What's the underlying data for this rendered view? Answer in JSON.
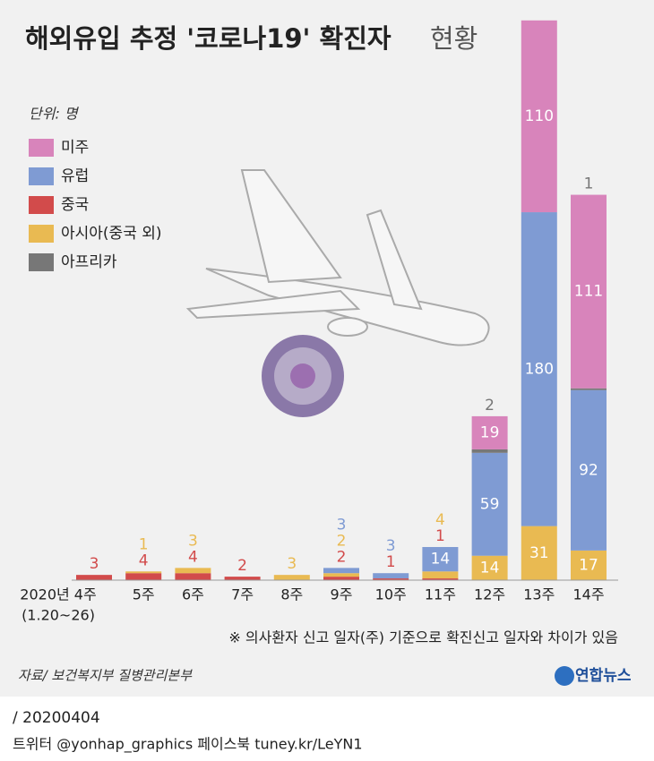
{
  "chart_data": {
    "type": "stacked-bar",
    "title": "해외유입 추정 '코로나19' 확진자",
    "title_suffix": "현황",
    "unit": "단위: 명",
    "categories": [
      "2020년 4주",
      "5주",
      "6주",
      "7주",
      "8주",
      "9주",
      "10주",
      "11주",
      "12주",
      "13주",
      "14주"
    ],
    "first_category_note": "(1.20~26)",
    "ylim": [
      0,
      325
    ],
    "series": [
      {
        "name": "중국",
        "color": "#d24b4b",
        "values": [
          3,
          4,
          4,
          2,
          null,
          2,
          1,
          1,
          null,
          null,
          null
        ]
      },
      {
        "name": "아시아(중국 외)",
        "color": "#e9ba52",
        "values": [
          null,
          1,
          3,
          null,
          3,
          2,
          null,
          4,
          14,
          31,
          17
        ]
      },
      {
        "name": "유럽",
        "color": "#7f9bd3",
        "values": [
          null,
          null,
          null,
          null,
          null,
          3,
          3,
          14,
          59,
          180,
          92
        ]
      },
      {
        "name": "아프리카",
        "color": "#777777",
        "values": [
          null,
          null,
          null,
          null,
          null,
          null,
          null,
          null,
          2,
          null,
          1
        ]
      },
      {
        "name": "미주",
        "color": "#d884bb",
        "values": [
          null,
          null,
          null,
          null,
          null,
          null,
          null,
          null,
          19,
          110,
          111
        ]
      }
    ],
    "legend_order": [
      4,
      2,
      0,
      1,
      3
    ],
    "note": "※ 의사환자 신고 일자(주) 기준으로 확진신고 일자와 차이가 있음",
    "source": "자료/ 보건복지부 질병관리본부",
    "logo": "연합뉴스",
    "date": "/ 20200404",
    "footer": "트위터 @yonhap_graphics  페이스북 tuney.kr/LeYN1"
  }
}
